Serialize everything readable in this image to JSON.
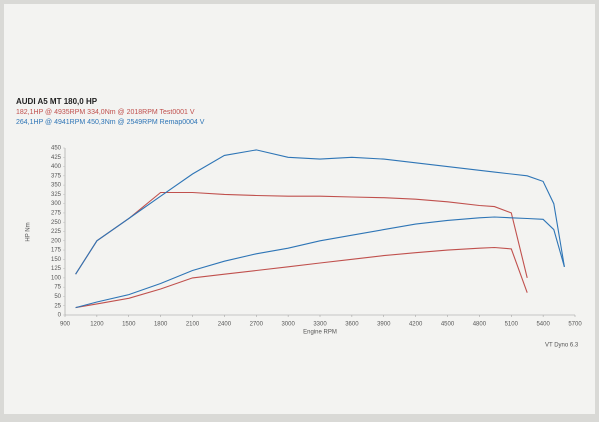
{
  "chart_data": {
    "type": "line",
    "title": "AUDI A5 MT 180,0 HP",
    "x_label": "Engine RPM",
    "y_label": "HP  Nm",
    "footer": "VT Dyno 6.3",
    "x": [
      1000,
      1200,
      1500,
      1800,
      2100,
      2400,
      2700,
      3000,
      3300,
      3600,
      3900,
      4200,
      4500,
      4800,
      4941,
      5100,
      5250,
      5400,
      5500,
      5600
    ],
    "series": [
      {
        "name": "182,1HP @ 4935RPM 334,0Nm @ 2018RPM  Test0001 V",
        "color": "#c0504d",
        "values": [
          20,
          30,
          45,
          70,
          100,
          110,
          120,
          130,
          140,
          150,
          160,
          168,
          175,
          180,
          182,
          178,
          60,
          null,
          null,
          null
        ]
      },
      {
        "color": "#c0504d",
        "values": [
          110,
          200,
          260,
          330,
          330,
          325,
          322,
          320,
          320,
          318,
          316,
          312,
          305,
          295,
          292,
          275,
          100,
          null,
          null,
          null
        ]
      },
      {
        "name": "264,1HP @ 4941RPM 450,3Nm @ 2549RPM  Remap0004 V",
        "color": "#2e75b6",
        "values": [
          20,
          35,
          55,
          85,
          120,
          145,
          165,
          180,
          200,
          215,
          230,
          245,
          255,
          262,
          264,
          262,
          260,
          258,
          230,
          130
        ]
      },
      {
        "color": "#2e75b6",
        "values": [
          110,
          200,
          260,
          320,
          380,
          430,
          445,
          425,
          420,
          425,
          420,
          410,
          400,
          390,
          385,
          380,
          375,
          360,
          300,
          130
        ]
      }
    ],
    "xlim": [
      900,
      5700
    ],
    "xticks": [
      900,
      1200,
      1500,
      1800,
      2100,
      2400,
      2700,
      3000,
      3300,
      3600,
      3900,
      4200,
      4500,
      4800,
      5100,
      5400,
      5700
    ],
    "ylim": [
      0,
      450
    ],
    "yticks": [
      0,
      25,
      50,
      75,
      100,
      125,
      150,
      175,
      200,
      225,
      250,
      275,
      300,
      325,
      350,
      375,
      400,
      425,
      450
    ],
    "grid": false
  }
}
